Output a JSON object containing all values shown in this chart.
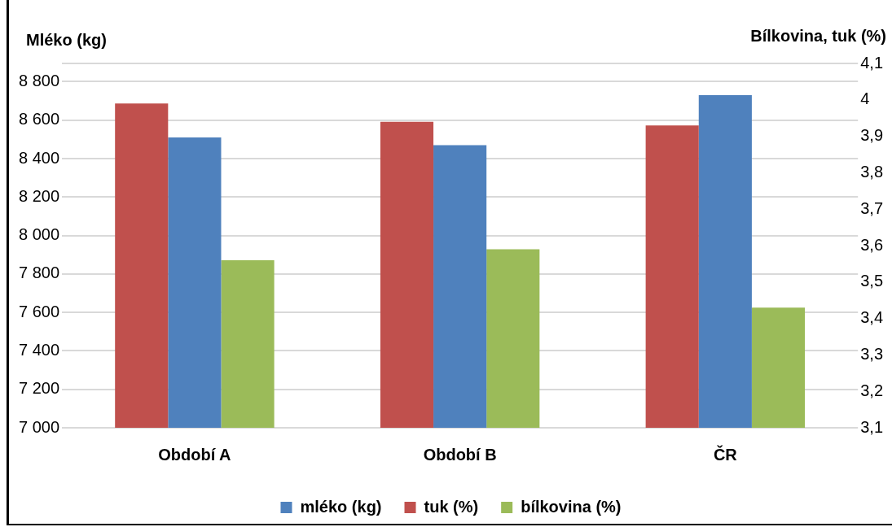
{
  "chart_data": {
    "type": "bar",
    "categories": [
      "Období A",
      "Období B",
      "ČR"
    ],
    "ylabel": "Mléko (kg)",
    "y2label": "Bílkovina, tuk (%)",
    "series": [
      {
        "name": "tuk (%)",
        "color": "#c0504d",
        "axis": "y2",
        "values": [
          3.99,
          3.94,
          3.93
        ]
      },
      {
        "name": "mléko (kg)",
        "color": "#4f81bd",
        "values": [
          8510,
          8470,
          8730
        ]
      },
      {
        "name": "bílkovina (%)",
        "color": "#9bbb59",
        "axis": "y2",
        "values": [
          3.56,
          3.59,
          3.43
        ]
      }
    ],
    "ylim": [
      7000,
      8895
    ],
    "yticks": [
      {
        "value": 7000,
        "label": "7 000"
      },
      {
        "value": 7200,
        "label": "7 200"
      },
      {
        "value": 7400,
        "label": "7 400"
      },
      {
        "value": 7600,
        "label": "7 600"
      },
      {
        "value": 7800,
        "label": "7 800"
      },
      {
        "value": 8000,
        "label": "8 000"
      },
      {
        "value": 8200,
        "label": "8 200"
      },
      {
        "value": 8400,
        "label": "8 400"
      },
      {
        "value": 8600,
        "label": "8 600"
      },
      {
        "value": 8800,
        "label": "8 800"
      }
    ],
    "y2lim": [
      3.1,
      4.1
    ],
    "y2ticks": [
      {
        "value": 3.1,
        "label": "3,1"
      },
      {
        "value": 3.2,
        "label": "3,2"
      },
      {
        "value": 3.3,
        "label": "3,3"
      },
      {
        "value": 3.4,
        "label": "3,4"
      },
      {
        "value": 3.5,
        "label": "3,5"
      },
      {
        "value": 3.6,
        "label": "3,6"
      },
      {
        "value": 3.7,
        "label": "3,7"
      },
      {
        "value": 3.8,
        "label": "3,8"
      },
      {
        "value": 3.9,
        "label": "3,9"
      },
      {
        "value": 4.0,
        "label": "4"
      },
      {
        "value": 4.1,
        "label": "4,1"
      }
    ],
    "grid": "y",
    "legend": "bottom"
  }
}
